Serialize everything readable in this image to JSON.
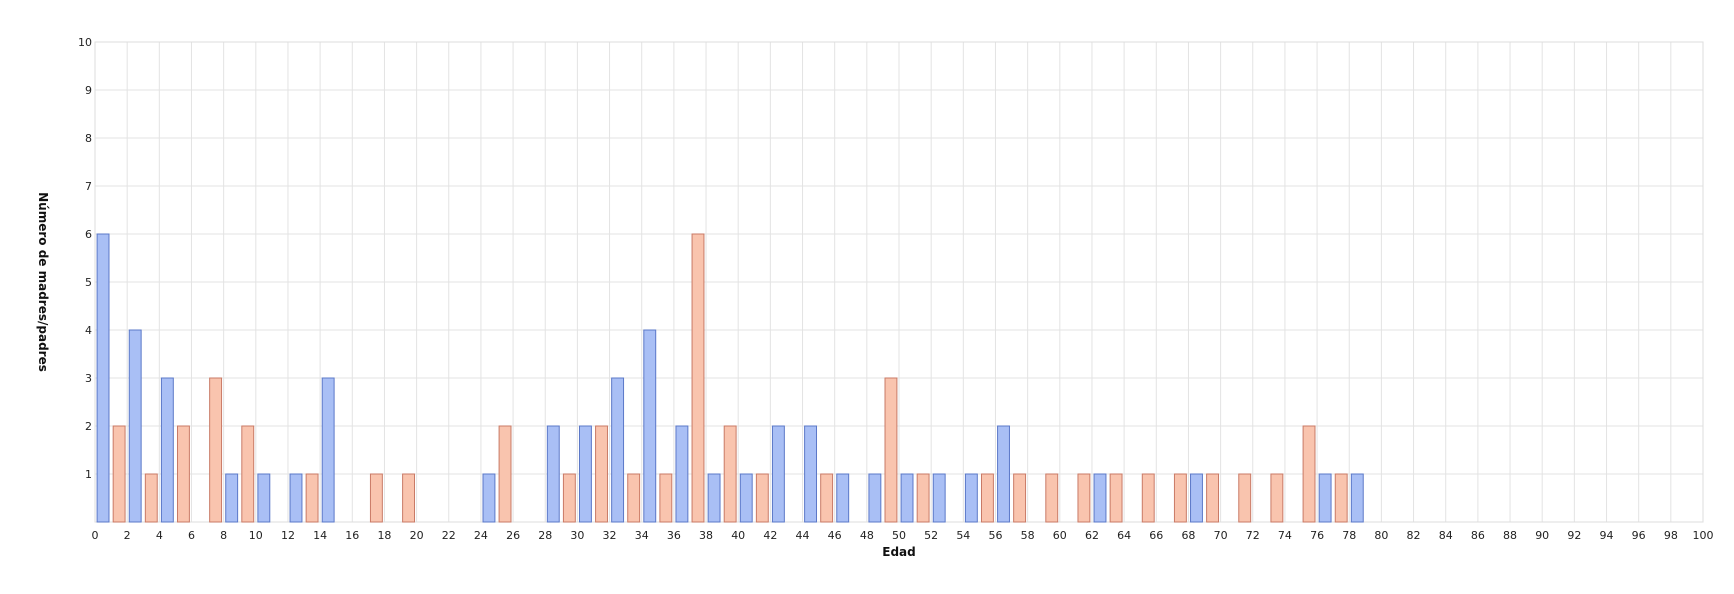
{
  "chart_data": {
    "type": "bar",
    "xlabel": "Edad",
    "ylabel": "Número de madres/padres",
    "xlim": [
      0,
      100
    ],
    "ylim": [
      0,
      10
    ],
    "x_ticks": [
      0,
      2,
      4,
      6,
      8,
      10,
      12,
      14,
      16,
      18,
      20,
      22,
      24,
      26,
      28,
      30,
      32,
      34,
      36,
      38,
      40,
      42,
      44,
      46,
      48,
      50,
      52,
      54,
      56,
      58,
      60,
      62,
      64,
      66,
      68,
      70,
      72,
      74,
      76,
      78,
      80,
      82,
      84,
      86,
      88,
      90,
      92,
      94,
      96,
      98,
      100
    ],
    "y_ticks": [
      1,
      2,
      3,
      4,
      5,
      6,
      7,
      8,
      9,
      10
    ],
    "grid": true,
    "legend": "none",
    "series": [
      {
        "color": "#a9bff5",
        "stroke": "#5b78c8",
        "points": [
          [
            0,
            6
          ],
          [
            2,
            4
          ],
          [
            4,
            3
          ],
          [
            8,
            1
          ],
          [
            10,
            1
          ],
          [
            12,
            1
          ],
          [
            14,
            3
          ],
          [
            24,
            1
          ],
          [
            28,
            2
          ],
          [
            30,
            2
          ],
          [
            32,
            3
          ],
          [
            34,
            4
          ],
          [
            36,
            2
          ],
          [
            38,
            1
          ],
          [
            40,
            1
          ],
          [
            42,
            2
          ],
          [
            44,
            2
          ],
          [
            46,
            1
          ],
          [
            48,
            1
          ],
          [
            50,
            1
          ],
          [
            52,
            1
          ],
          [
            54,
            1
          ],
          [
            56,
            2
          ],
          [
            62,
            1
          ],
          [
            68,
            1
          ],
          [
            76,
            1
          ],
          [
            78,
            1
          ]
        ]
      },
      {
        "color": "#f9c4ae",
        "stroke": "#c97a66",
        "points": [
          [
            1,
            2
          ],
          [
            3,
            1
          ],
          [
            5,
            2
          ],
          [
            7,
            3
          ],
          [
            9,
            2
          ],
          [
            13,
            1
          ],
          [
            17,
            1
          ],
          [
            19,
            1
          ],
          [
            25,
            2
          ],
          [
            29,
            1
          ],
          [
            31,
            2
          ],
          [
            33,
            1
          ],
          [
            35,
            1
          ],
          [
            37,
            6
          ],
          [
            39,
            2
          ],
          [
            41,
            1
          ],
          [
            45,
            1
          ],
          [
            49,
            3
          ],
          [
            51,
            1
          ],
          [
            55,
            1
          ],
          [
            57,
            1
          ],
          [
            59,
            1
          ],
          [
            61,
            1
          ],
          [
            63,
            1
          ],
          [
            65,
            1
          ],
          [
            67,
            1
          ],
          [
            69,
            1
          ],
          [
            71,
            1
          ],
          [
            73,
            1
          ],
          [
            75,
            2
          ],
          [
            77,
            1
          ]
        ]
      }
    ]
  }
}
